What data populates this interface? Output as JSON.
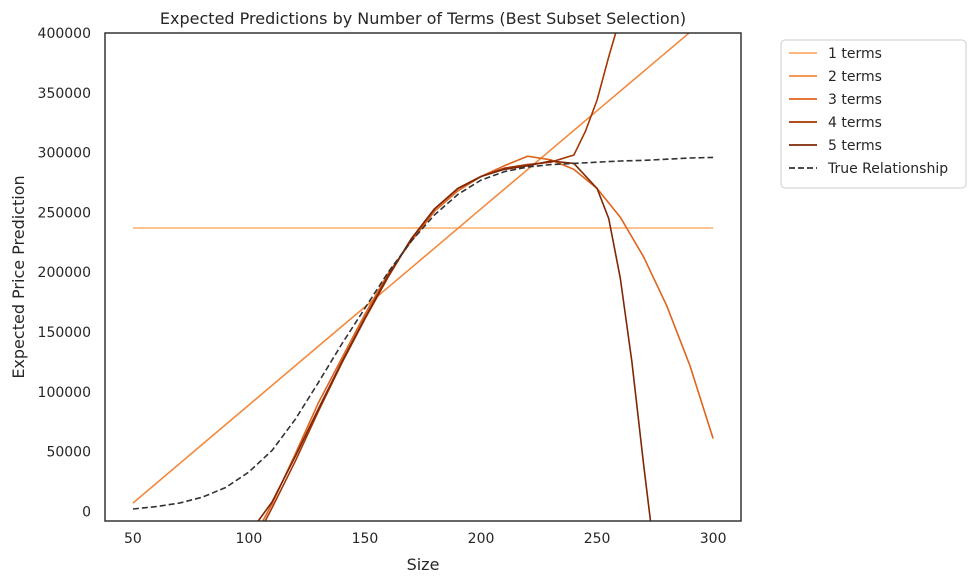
{
  "chart_data": {
    "type": "line",
    "title": "Expected Predictions by Number of Terms (Best Subset Selection)",
    "xlabel": "Size",
    "ylabel": "Expected Price Prediction",
    "xlim": [
      38,
      312
    ],
    "ylim": [
      -8000,
      400000
    ],
    "xticks": [
      "50",
      "100",
      "150",
      "200",
      "250",
      "300"
    ],
    "yticks": [
      "0",
      "50000",
      "100000",
      "150000",
      "200000",
      "250000",
      "300000",
      "350000",
      "400000"
    ],
    "grid": false,
    "legend_position": "outside-top-right",
    "series": [
      {
        "name": "1 terms",
        "color": "#fdae6b",
        "dash": "solid",
        "x": [
          50,
          300
        ],
        "y": [
          237000,
          237000
        ]
      },
      {
        "name": "2 terms",
        "color": "#f4893d",
        "dash": "solid",
        "x": [
          50,
          75,
          100,
          125,
          150,
          175,
          200,
          225,
          250,
          275,
          300
        ],
        "y": [
          7000,
          48000,
          89000,
          130000,
          171000,
          212000,
          253000,
          294000,
          335000,
          376000,
          417000
        ]
      },
      {
        "name": "3 terms",
        "color": "#e0631d",
        "dash": "solid",
        "x": [
          106,
          110,
          120,
          130,
          140,
          150,
          160,
          170,
          180,
          190,
          200,
          210,
          220,
          230,
          240,
          250,
          260,
          270,
          280,
          290,
          300
        ],
        "y": [
          -8000,
          6500,
          48000,
          91000,
          128000,
          165000,
          199000,
          226000,
          251000,
          268000,
          280000,
          289000,
          297000,
          294000,
          286000,
          270000,
          246000,
          213000,
          172000,
          122000,
          61000
        ]
      },
      {
        "name": "4 terms",
        "color": "#a63603",
        "dash": "solid",
        "x": [
          107,
          110,
          120,
          130,
          140,
          150,
          160,
          170,
          180,
          190,
          200,
          210,
          220,
          230,
          240,
          245,
          250,
          255,
          258
        ],
        "y": [
          -8000,
          3000,
          42000,
          84000,
          124000,
          161000,
          196000,
          228000,
          253000,
          270000,
          280000,
          287000,
          290000,
          292000,
          298000,
          318000,
          344000,
          380000,
          400000
        ]
      },
      {
        "name": "5 terms",
        "color": "#7f2704",
        "dash": "solid",
        "x": [
          104,
          110,
          120,
          130,
          140,
          150,
          160,
          170,
          180,
          190,
          200,
          210,
          220,
          230,
          240,
          250,
          255,
          260,
          265,
          270,
          273
        ],
        "y": [
          -8000,
          8000,
          46000,
          86000,
          125000,
          162000,
          197000,
          228000,
          253000,
          270000,
          280000,
          286000,
          289000,
          293000,
          291000,
          270000,
          245000,
          195000,
          125000,
          40000,
          -8000
        ]
      },
      {
        "name": "True Relationship",
        "color": "#333333",
        "dash": "dashed",
        "x": [
          50,
          60,
          70,
          80,
          90,
          100,
          110,
          120,
          130,
          140,
          150,
          160,
          170,
          180,
          190,
          200,
          210,
          220,
          230,
          240,
          250,
          260,
          270,
          280,
          290,
          300
        ],
        "y": [
          2000,
          4000,
          7000,
          12000,
          20000,
          33000,
          51000,
          77000,
          108000,
          140000,
          170000,
          200000,
          226000,
          248000,
          265000,
          277000,
          284000,
          288000,
          290000,
          291000,
          292000,
          293000,
          293500,
          294500,
          295500,
          296000
        ]
      }
    ]
  }
}
